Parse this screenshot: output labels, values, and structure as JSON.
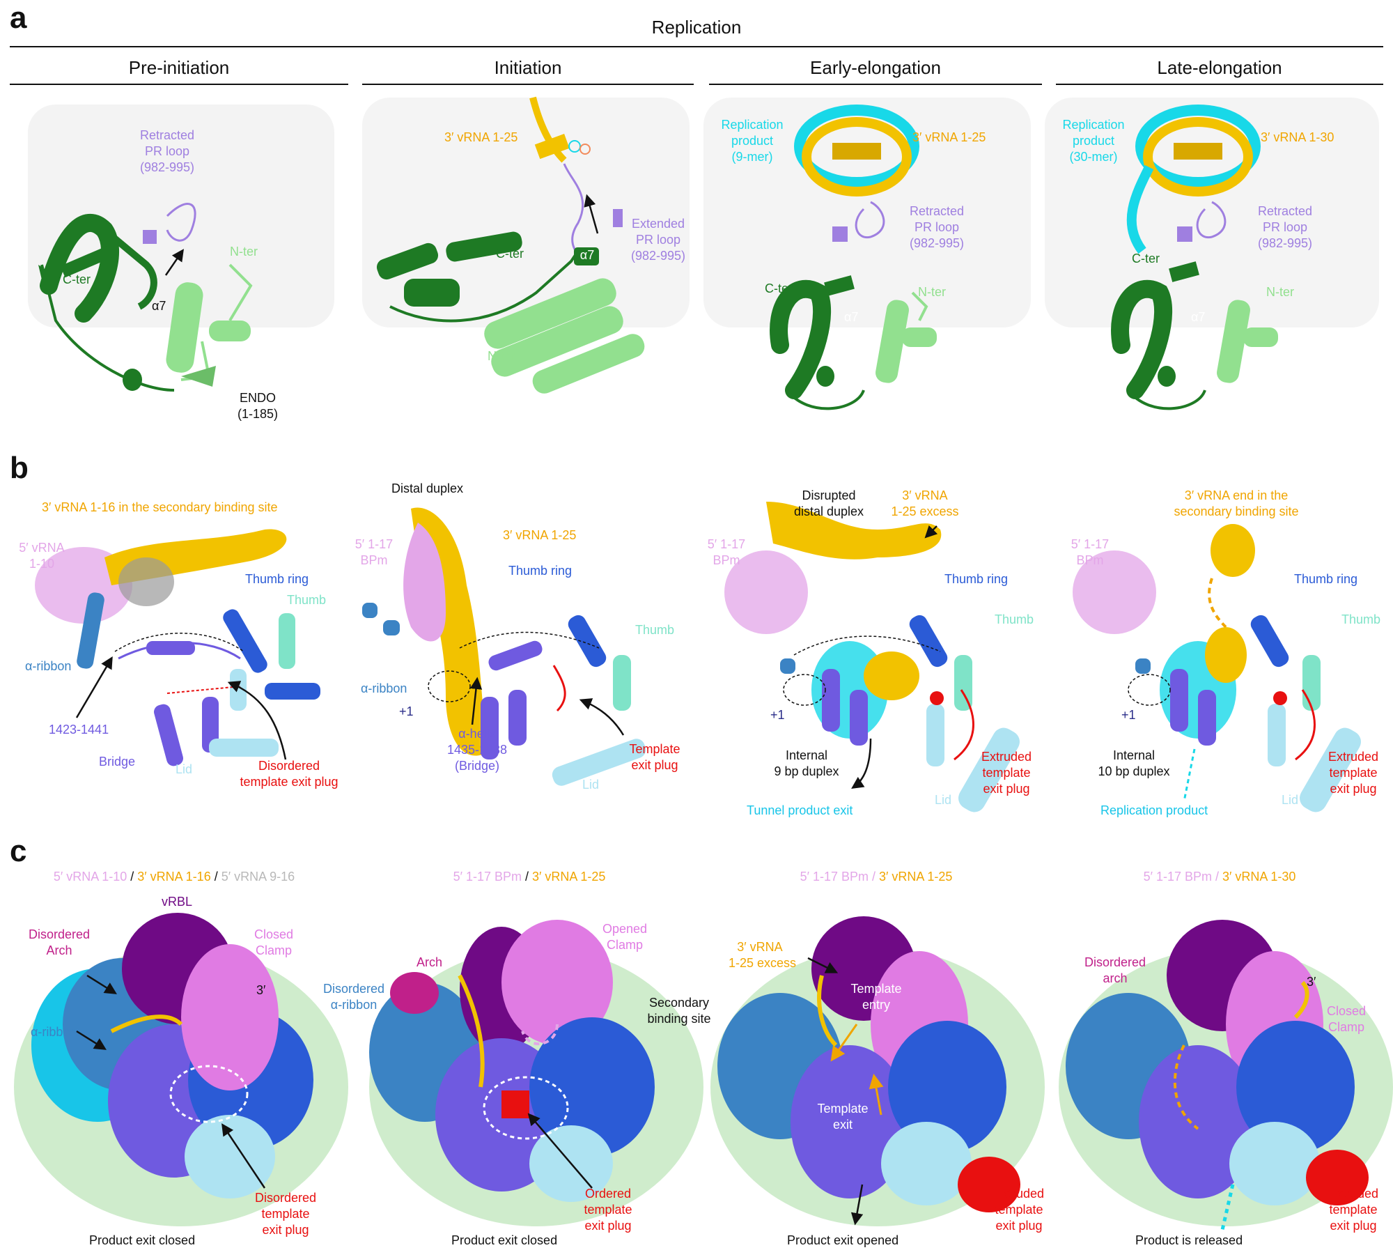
{
  "colors": {
    "dark_green": "#1e7a24",
    "light_green": "#92e08f",
    "purple_loop": "#9f7fe0",
    "yellow": "#f2c200",
    "orange_text": "#f0a500",
    "cyan": "#18d8e8",
    "pink": "#e3a6e8",
    "blue": "#2b5bd6",
    "steel_blue": "#3b83c4",
    "violet": "#6f5ae0",
    "light_blue": "#aee3f2",
    "red": "#e81010",
    "magenta": "#c0208a",
    "dark_purple": "#6f0a85",
    "mint": "#7fe3c8",
    "grey": "#b8b8b8"
  },
  "panel_a": {
    "letter": "a",
    "header": "Replication",
    "columns": [
      {
        "title": "Pre-initiation",
        "labels": {
          "pr_loop": [
            "Retracted",
            "PR loop",
            "(982-995)"
          ],
          "c_ter": "C-ter",
          "n_ter": "N-ter",
          "alpha7": "α7",
          "endo": [
            "ENDO",
            "(1-185)"
          ]
        }
      },
      {
        "title": "Initiation",
        "labels": {
          "vrna": "3′ vRNA 1-25",
          "pr_loop": [
            "Extended",
            "PR loop",
            "(982-995)"
          ],
          "c_ter": "C-ter",
          "n_ter": "N-ter",
          "alpha7": "α7"
        }
      },
      {
        "title": "Early-elongation",
        "labels": {
          "product": [
            "Replication",
            "product",
            "(9-mer)"
          ],
          "vrna": "3′ vRNA 1-25",
          "pr_loop": [
            "Retracted",
            "PR loop",
            "(982-995)"
          ],
          "c_ter": "C-ter",
          "n_ter": "N-ter",
          "alpha7": "α7"
        }
      },
      {
        "title": "Late-elongation",
        "labels": {
          "product": [
            "Replication",
            "product",
            "(30-mer)"
          ],
          "vrna": "3′ vRNA 1-30",
          "pr_loop": [
            "Retracted",
            "PR loop",
            "(982-995)"
          ],
          "c_ter": "C-ter",
          "n_ter": "N-ter",
          "alpha7": "α7"
        }
      }
    ]
  },
  "panel_b": {
    "letter": "b",
    "columns": [
      {
        "header": "3′ vRNA 1-16 in the secondary binding site",
        "labels": {
          "five_prime": [
            "5′ vRNA",
            "1-10"
          ],
          "thumb_ring": "Thumb ring",
          "thumb": "Thumb",
          "alpha_ribbon": "α-ribbon",
          "range": "1423-1441",
          "bridge": "Bridge",
          "lid": "Lid",
          "plug": [
            "Disordered",
            "template exit plug"
          ]
        }
      },
      {
        "header": "Distal duplex",
        "labels": {
          "five_prime": [
            "5′ 1-17",
            "BPm"
          ],
          "vrna": "3′ vRNA 1-25",
          "thumb_ring": "Thumb ring",
          "thumb": "Thumb",
          "alpha_ribbon": "α-ribbon",
          "plus1": "+1",
          "helix": [
            "α-helix",
            "1435-1438",
            "(Bridge)"
          ],
          "lid": "Lid",
          "plug": [
            "Template",
            "exit plug"
          ]
        }
      },
      {
        "header": [
          "Disrupted",
          "distal duplex"
        ],
        "labels": {
          "five_prime": [
            "5′ 1-17",
            "BPm"
          ],
          "vrna": [
            "3′ vRNA",
            "1-25 excess"
          ],
          "thumb_ring": "Thumb ring",
          "thumb": "Thumb",
          "plus1": "+1",
          "internal": [
            "Internal",
            "9 bp duplex"
          ],
          "tunnel": "Tunnel product exit",
          "lid": "Lid",
          "plug": [
            "Extruded",
            "template",
            "exit plug"
          ]
        }
      },
      {
        "header": [
          "3′ vRNA end in the",
          "secondary binding site"
        ],
        "labels": {
          "five_prime": [
            "5′ 1-17",
            "BPm"
          ],
          "thumb_ring": "Thumb ring",
          "thumb": "Thumb",
          "plus1": "+1",
          "internal": [
            "Internal",
            "10 bp duplex"
          ],
          "product": "Replication product",
          "lid": "Lid",
          "plug": [
            "Extruded",
            "template",
            "exit plug"
          ]
        }
      }
    ]
  },
  "panel_c": {
    "letter": "c",
    "columns": [
      {
        "subtitle": [
          "5′ vRNA 1-10",
          " / ",
          "3′ vRNA 1-16",
          " / ",
          "5′ vRNA 9-16"
        ],
        "labels": {
          "vrbl": "vRBL",
          "arch": [
            "Disordered",
            "Arch"
          ],
          "clamp": [
            "Closed",
            "Clamp"
          ],
          "three_prime": "3′",
          "alpha_ribbon": "α-ribbon",
          "plug": [
            "Disordered",
            "template",
            "exit plug"
          ]
        },
        "caption": "Product exit closed"
      },
      {
        "subtitle": [
          "5′ 1-17 BPm",
          " / ",
          "3′ vRNA 1-25"
        ],
        "labels": {
          "arch": "Arch",
          "clamp": [
            "Opened",
            "Clamp"
          ],
          "alpha_ribbon": [
            "Disordered",
            "α-ribbon"
          ],
          "secondary": [
            "Secondary",
            "binding site"
          ],
          "plug": [
            "Ordered",
            "template",
            "exit plug"
          ]
        },
        "caption": "Product exit closed"
      },
      {
        "subtitle": [
          "5′ 1-17 BPm / ",
          "3′ vRNA 1-25"
        ],
        "labels": {
          "excess": [
            "3′ vRNA",
            "1-25 excess"
          ],
          "entry": [
            "Template",
            "entry"
          ],
          "exit": [
            "Template",
            "exit"
          ],
          "plug": [
            "Extruded",
            "template",
            "exit plug"
          ]
        },
        "caption": "Product exit opened"
      },
      {
        "subtitle": [
          "5′ 1-17 BPm / ",
          "3′ vRNA 1-30"
        ],
        "labels": {
          "arch": [
            "Disordered",
            "arch"
          ],
          "three_prime": "3′",
          "clamp": [
            "Closed",
            "Clamp"
          ],
          "plug": [
            "Extruded",
            "template",
            "exit plug"
          ]
        },
        "caption": "Product is released"
      }
    ]
  }
}
